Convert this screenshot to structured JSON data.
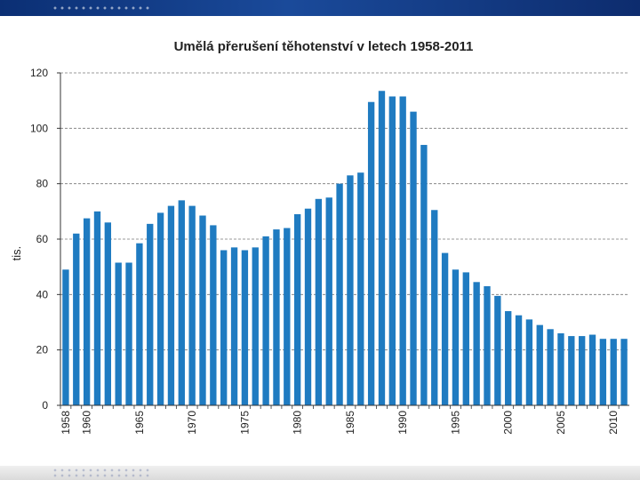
{
  "chart_data": {
    "type": "bar",
    "title": "Umělá přerušení těhotenství v letech 1958-2011",
    "xlabel": "",
    "ylabel": "tis.",
    "ylim": [
      0,
      120
    ],
    "yticks": [
      0,
      20,
      40,
      60,
      80,
      100,
      120
    ],
    "xtick_labels": [
      "1958",
      "1960",
      "1965",
      "1970",
      "1975",
      "1980",
      "1985",
      "1990",
      "1995",
      "2000",
      "2005",
      "2010"
    ],
    "categories": [
      1958,
      1959,
      1960,
      1961,
      1962,
      1963,
      1964,
      1965,
      1966,
      1967,
      1968,
      1969,
      1970,
      1971,
      1972,
      1973,
      1974,
      1975,
      1976,
      1977,
      1978,
      1979,
      1980,
      1981,
      1982,
      1983,
      1984,
      1985,
      1986,
      1987,
      1988,
      1989,
      1990,
      1991,
      1992,
      1993,
      1994,
      1995,
      1996,
      1997,
      1998,
      1999,
      2000,
      2001,
      2002,
      2003,
      2004,
      2005,
      2006,
      2007,
      2008,
      2009,
      2010,
      2011
    ],
    "values": [
      49,
      62,
      67.5,
      70,
      66,
      51.5,
      51.5,
      58.5,
      65.5,
      69.5,
      72,
      74,
      72,
      68.5,
      65,
      56,
      57,
      56,
      57,
      61,
      63.5,
      64,
      69,
      71,
      74.5,
      75,
      80,
      83,
      84,
      109.5,
      113.5,
      111.5,
      111.5,
      106,
      94,
      70.5,
      55,
      49,
      48,
      44.5,
      43,
      39.5,
      34,
      32.5,
      31,
      29,
      27.5,
      26,
      25,
      25,
      25.5,
      24,
      24,
      24
    ],
    "bar_color": "#1f7bc1",
    "grid": "dashed"
  }
}
